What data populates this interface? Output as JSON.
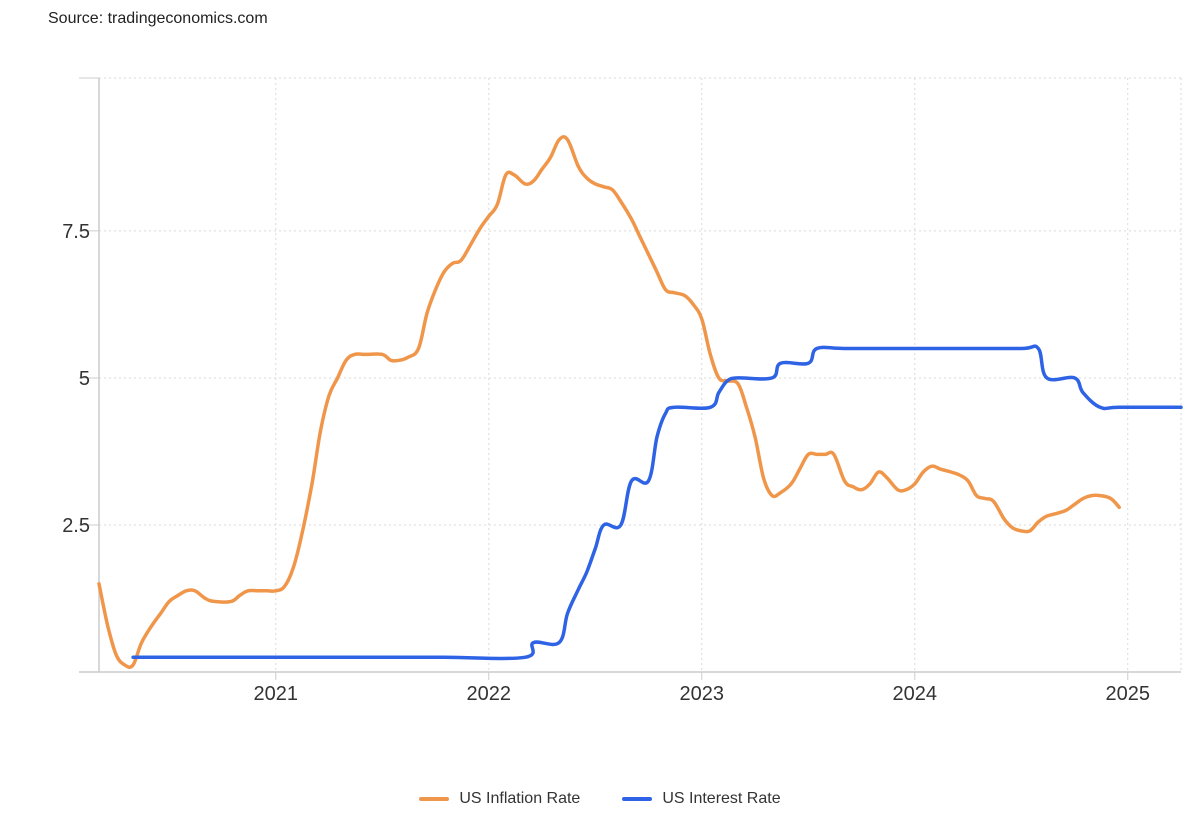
{
  "source": "Source: tradingeconomics.com",
  "colors": {
    "inflation": "#f0964a",
    "interest": "#2f63e5",
    "grid": "#d9d9d9",
    "axis": "#cccccc"
  },
  "chart_data": {
    "type": "line",
    "title": "",
    "xlabel": "",
    "ylabel": "",
    "xlim": [
      2020.17,
      2025.25
    ],
    "ylim": [
      0,
      10.1
    ],
    "x_ticks": [
      2021,
      2022,
      2023,
      2024,
      2025
    ],
    "x_tick_labels": [
      "2021",
      "2022",
      "2023",
      "2024",
      "2025"
    ],
    "y_ticks": [
      2.5,
      5,
      7.5
    ],
    "y_tick_labels": [
      "2.5",
      "5",
      "7.5"
    ],
    "grid": true,
    "legend_position": "bottom-center",
    "series": [
      {
        "name": "US Inflation Rate",
        "color": "#f0964a",
        "points": [
          [
            2020.17,
            1.5
          ],
          [
            2020.21,
            0.8
          ],
          [
            2020.25,
            0.3
          ],
          [
            2020.29,
            0.12
          ],
          [
            2020.33,
            0.12
          ],
          [
            2020.37,
            0.5
          ],
          [
            2020.42,
            0.8
          ],
          [
            2020.46,
            1.0
          ],
          [
            2020.5,
            1.2
          ],
          [
            2020.54,
            1.3
          ],
          [
            2020.58,
            1.38
          ],
          [
            2020.62,
            1.38
          ],
          [
            2020.67,
            1.25
          ],
          [
            2020.71,
            1.2
          ],
          [
            2020.79,
            1.2
          ],
          [
            2020.83,
            1.3
          ],
          [
            2020.87,
            1.38
          ],
          [
            2020.92,
            1.38
          ],
          [
            2020.96,
            1.38
          ],
          [
            2021.0,
            1.38
          ],
          [
            2021.04,
            1.45
          ],
          [
            2021.08,
            1.75
          ],
          [
            2021.12,
            2.3
          ],
          [
            2021.17,
            3.2
          ],
          [
            2021.21,
            4.1
          ],
          [
            2021.25,
            4.7
          ],
          [
            2021.29,
            5.0
          ],
          [
            2021.33,
            5.3
          ],
          [
            2021.37,
            5.4
          ],
          [
            2021.42,
            5.4
          ],
          [
            2021.5,
            5.4
          ],
          [
            2021.54,
            5.3
          ],
          [
            2021.58,
            5.3
          ],
          [
            2021.62,
            5.35
          ],
          [
            2021.67,
            5.5
          ],
          [
            2021.71,
            6.1
          ],
          [
            2021.75,
            6.5
          ],
          [
            2021.79,
            6.8
          ],
          [
            2021.83,
            6.95
          ],
          [
            2021.87,
            7.0
          ],
          [
            2021.92,
            7.3
          ],
          [
            2021.96,
            7.55
          ],
          [
            2022.0,
            7.75
          ],
          [
            2022.04,
            7.95
          ],
          [
            2022.08,
            8.45
          ],
          [
            2022.12,
            8.45
          ],
          [
            2022.17,
            8.3
          ],
          [
            2022.21,
            8.35
          ],
          [
            2022.25,
            8.55
          ],
          [
            2022.29,
            8.75
          ],
          [
            2022.33,
            9.05
          ],
          [
            2022.37,
            9.05
          ],
          [
            2022.42,
            8.6
          ],
          [
            2022.46,
            8.4
          ],
          [
            2022.5,
            8.3
          ],
          [
            2022.54,
            8.25
          ],
          [
            2022.58,
            8.2
          ],
          [
            2022.62,
            8.0
          ],
          [
            2022.67,
            7.7
          ],
          [
            2022.71,
            7.4
          ],
          [
            2022.75,
            7.1
          ],
          [
            2022.79,
            6.8
          ],
          [
            2022.83,
            6.5
          ],
          [
            2022.87,
            6.45
          ],
          [
            2022.92,
            6.4
          ],
          [
            2022.96,
            6.25
          ],
          [
            2023.0,
            6.0
          ],
          [
            2023.04,
            5.4
          ],
          [
            2023.08,
            5.0
          ],
          [
            2023.12,
            4.95
          ],
          [
            2023.17,
            4.9
          ],
          [
            2023.21,
            4.5
          ],
          [
            2023.25,
            4.0
          ],
          [
            2023.29,
            3.3
          ],
          [
            2023.33,
            3.0
          ],
          [
            2023.37,
            3.05
          ],
          [
            2023.42,
            3.2
          ],
          [
            2023.46,
            3.45
          ],
          [
            2023.5,
            3.7
          ],
          [
            2023.54,
            3.7
          ],
          [
            2023.58,
            3.7
          ],
          [
            2023.62,
            3.7
          ],
          [
            2023.67,
            3.25
          ],
          [
            2023.71,
            3.15
          ],
          [
            2023.75,
            3.1
          ],
          [
            2023.79,
            3.2
          ],
          [
            2023.83,
            3.4
          ],
          [
            2023.87,
            3.3
          ],
          [
            2023.92,
            3.1
          ],
          [
            2023.96,
            3.1
          ],
          [
            2024.0,
            3.2
          ],
          [
            2024.04,
            3.4
          ],
          [
            2024.08,
            3.5
          ],
          [
            2024.12,
            3.45
          ],
          [
            2024.17,
            3.4
          ],
          [
            2024.21,
            3.35
          ],
          [
            2024.25,
            3.25
          ],
          [
            2024.29,
            3.0
          ],
          [
            2024.33,
            2.95
          ],
          [
            2024.37,
            2.9
          ],
          [
            2024.42,
            2.6
          ],
          [
            2024.46,
            2.45
          ],
          [
            2024.5,
            2.4
          ],
          [
            2024.54,
            2.4
          ],
          [
            2024.58,
            2.55
          ],
          [
            2024.62,
            2.65
          ],
          [
            2024.67,
            2.7
          ],
          [
            2024.71,
            2.75
          ],
          [
            2024.75,
            2.85
          ],
          [
            2024.79,
            2.95
          ],
          [
            2024.83,
            3.0
          ],
          [
            2024.87,
            3.0
          ],
          [
            2024.92,
            2.95
          ],
          [
            2024.96,
            2.8
          ]
        ]
      },
      {
        "name": "US Interest Rate",
        "color": "#2f63e5",
        "points": [
          [
            2020.33,
            0.25
          ],
          [
            2020.62,
            0.25
          ],
          [
            2020.92,
            0.25
          ],
          [
            2021.21,
            0.25
          ],
          [
            2021.5,
            0.25
          ],
          [
            2021.79,
            0.25
          ],
          [
            2022.17,
            0.25
          ],
          [
            2022.21,
            0.5
          ],
          [
            2022.33,
            0.5
          ],
          [
            2022.37,
            1.0
          ],
          [
            2022.42,
            1.4
          ],
          [
            2022.46,
            1.7
          ],
          [
            2022.5,
            2.1
          ],
          [
            2022.54,
            2.5
          ],
          [
            2022.62,
            2.5
          ],
          [
            2022.67,
            3.25
          ],
          [
            2022.75,
            3.25
          ],
          [
            2022.79,
            4.0
          ],
          [
            2022.83,
            4.4
          ],
          [
            2022.87,
            4.5
          ],
          [
            2023.04,
            4.5
          ],
          [
            2023.08,
            4.75
          ],
          [
            2023.12,
            4.95
          ],
          [
            2023.17,
            5.0
          ],
          [
            2023.33,
            5.0
          ],
          [
            2023.37,
            5.25
          ],
          [
            2023.5,
            5.25
          ],
          [
            2023.54,
            5.5
          ],
          [
            2023.67,
            5.5
          ],
          [
            2023.92,
            5.5
          ],
          [
            2024.21,
            5.5
          ],
          [
            2024.5,
            5.5
          ],
          [
            2024.58,
            5.5
          ],
          [
            2024.62,
            5.0
          ],
          [
            2024.75,
            5.0
          ],
          [
            2024.79,
            4.75
          ],
          [
            2024.87,
            4.5
          ],
          [
            2024.96,
            4.5
          ],
          [
            2025.25,
            4.5
          ]
        ]
      }
    ]
  }
}
